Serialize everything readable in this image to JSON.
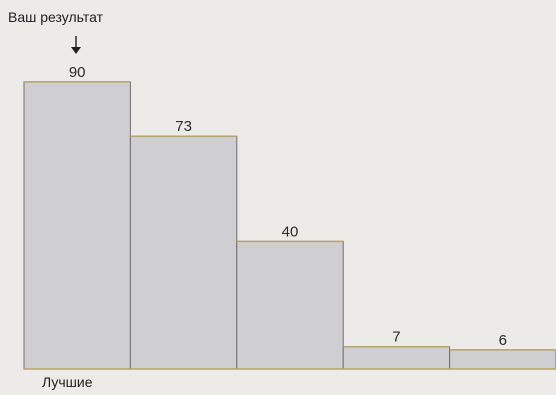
{
  "chart_data": {
    "type": "bar",
    "categories": [
      "",
      "",
      "",
      "",
      ""
    ],
    "values": [
      90,
      73,
      40,
      7,
      6
    ],
    "title": "",
    "xlabel": "",
    "ylabel": "",
    "ylim": [
      0,
      95
    ],
    "grid": false,
    "legend": "none",
    "annotations": {
      "top": "Ваш результат",
      "bottom": "Лучшие"
    },
    "colors": {
      "bar_fill": "#cfcfd2",
      "bar_edge": "#6f6f74",
      "bar_top": "#b7a46e",
      "background": "#ecebe8"
    }
  }
}
